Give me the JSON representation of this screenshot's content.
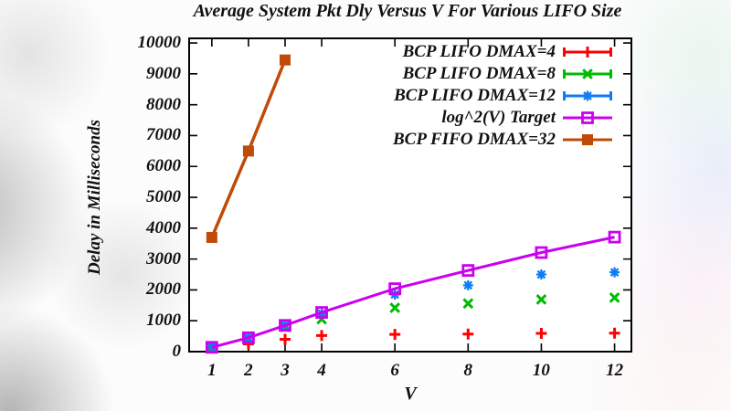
{
  "chart_data": {
    "type": "line",
    "title": "Average System Pkt Dly Versus V For Various LIFO Size",
    "xlabel": "V",
    "ylabel": "Delay in Milliseconds",
    "xlim": [
      0.38,
      12.46
    ],
    "ylim": [
      0,
      10150
    ],
    "x_ticks": [
      1,
      2,
      3,
      4,
      6,
      8,
      10,
      12
    ],
    "y_ticks": [
      0,
      1000,
      2000,
      3000,
      4000,
      5000,
      6000,
      7000,
      8000,
      9000,
      10000
    ],
    "grid": false,
    "legend_position": "inside top right",
    "series": [
      {
        "name": "BCP LIFO DMAX=4",
        "color": "#ff0000",
        "marker": "plus",
        "line": false,
        "legend_caps": true,
        "x": [
          1,
          2,
          3,
          4,
          6,
          8,
          10,
          12
        ],
        "values": [
          140,
          250,
          400,
          520,
          560,
          570,
          590,
          600
        ]
      },
      {
        "name": "BCP LIFO DMAX=8",
        "color": "#00bb00",
        "marker": "x",
        "line": false,
        "legend_caps": true,
        "x": [
          1,
          2,
          3,
          4,
          6,
          8,
          10,
          12
        ],
        "values": [
          150,
          430,
          800,
          1050,
          1420,
          1560,
          1690,
          1750
        ]
      },
      {
        "name": "BCP LIFO DMAX=12",
        "color": "#0d7cf5",
        "marker": "star",
        "line": false,
        "legend_caps": true,
        "x": [
          1,
          2,
          3,
          4,
          6,
          8,
          10,
          12
        ],
        "values": [
          160,
          460,
          860,
          1240,
          1850,
          2150,
          2500,
          2570
        ]
      },
      {
        "name": "log^2(V) Target",
        "color": "#cc00f0",
        "marker": "open-square",
        "line": true,
        "legend_caps": false,
        "x": [
          1,
          2,
          3,
          4,
          6,
          8,
          10,
          12
        ],
        "values": [
          140,
          450,
          850,
          1270,
          2040,
          2630,
          3210,
          3710
        ]
      },
      {
        "name": "BCP FIFO DMAX=32",
        "color": "#c04a08",
        "marker": "filled-square",
        "line": true,
        "legend_caps": false,
        "x": [
          1,
          2,
          3
        ],
        "values": [
          3700,
          6500,
          9450
        ]
      }
    ]
  }
}
